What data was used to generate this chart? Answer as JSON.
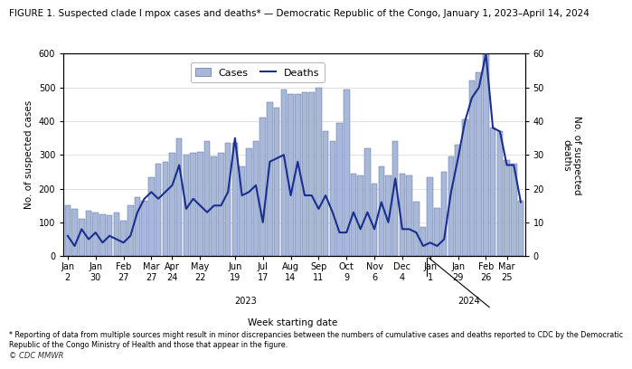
{
  "title": "FIGURE 1. Suspected clade I mpox cases and deaths* — Democratic Republic of the Congo, January 1, 2023–April 14, 2024",
  "xlabel": "Week starting date",
  "ylabel_left": "No. of suspected cases",
  "ylabel_right": "No. of suspected\ndeaths",
  "footnote": "* Reporting of data from multiple sources might result in minor discrepancies between the numbers of cumulative cases and deaths reported to CDC by the Democratic\nRepublic of the Congo Ministry of Health and those that appear in the figure.",
  "credit": "© CDC MMWR",
  "tick_labels_display": [
    "Jan\n2",
    "Jan\n30",
    "Feb\n27",
    "Mar\n27",
    "Apr\n24",
    "May\n22",
    "Jun\n19",
    "Jul\n17",
    "Aug\n14",
    "Sep\n11",
    "Oct\n9",
    "Nov\n6",
    "Dec\n4",
    "Jan\n1",
    "Jan\n29",
    "Feb\n26",
    "Mar\n25"
  ],
  "tick_positions": [
    0,
    4,
    8,
    12,
    15,
    19,
    24,
    28,
    32,
    36,
    40,
    44,
    48,
    52,
    56,
    60,
    63
  ],
  "cases": [
    150,
    140,
    110,
    135,
    130,
    125,
    120,
    130,
    105,
    150,
    175,
    165,
    235,
    275,
    280,
    305,
    350,
    300,
    305,
    310,
    340,
    295,
    305,
    335,
    335,
    265,
    320,
    340,
    410,
    455,
    440,
    495,
    480,
    480,
    485,
    485,
    500,
    370,
    340,
    395,
    495,
    245,
    240,
    320,
    215,
    265,
    240,
    340,
    245,
    240,
    160,
    85,
    235,
    143,
    250,
    295,
    330,
    405,
    520,
    545,
    600,
    380,
    370,
    285,
    275,
    165
  ],
  "deaths": [
    6,
    3,
    8,
    5,
    7,
    4,
    6,
    5,
    4,
    6,
    13,
    17,
    19,
    17,
    19,
    21,
    27,
    14,
    17,
    15,
    13,
    15,
    15,
    19,
    35,
    18,
    19,
    21,
    10,
    28,
    29,
    30,
    18,
    28,
    18,
    18,
    14,
    18,
    13,
    7,
    7,
    13,
    8,
    13,
    8,
    16,
    10,
    23,
    8,
    8,
    7,
    3,
    4,
    3,
    5,
    19,
    29,
    40,
    47,
    50,
    60,
    38,
    37,
    27,
    27,
    16
  ],
  "bar_color": "#a8b8d8",
  "bar_edgecolor": "#6070a0",
  "line_color": "#1a2f8f",
  "ylim_cases": [
    0,
    600
  ],
  "ylim_deaths": [
    0,
    60
  ],
  "yticks_cases": [
    0,
    100,
    200,
    300,
    400,
    500,
    600
  ],
  "yticks_deaths": [
    0,
    10,
    20,
    30,
    40,
    50,
    60
  ],
  "background_color": "#ffffff",
  "title_fontsize": 7.5,
  "axis_fontsize": 7.5,
  "tick_fontsize": 7,
  "legend_fontsize": 8
}
